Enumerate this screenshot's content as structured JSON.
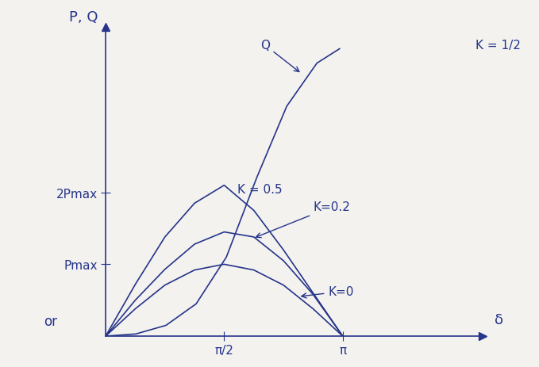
{
  "chart_data": {
    "type": "line",
    "x_label": "δ",
    "y_label": "P, Q",
    "annotations": [
      "K = 1/2",
      "or"
    ],
    "xlim": [
      0,
      5
    ],
    "ylim": [
      0,
      4.3
    ],
    "xticks": [
      {
        "value": 1.5708,
        "label": "π/2"
      },
      {
        "value": 3.1416,
        "label": "π"
      }
    ],
    "yticks": [
      {
        "value": 1,
        "label": "Pmax"
      },
      {
        "value": 2,
        "label": "2Pmax"
      }
    ],
    "grid": false,
    "series": [
      {
        "name": "K=0",
        "color": "#26348a",
        "x": [
          0,
          0.3927,
          0.7854,
          1.1781,
          1.5708,
          1.9635,
          2.3562,
          2.7489,
          3.1416
        ],
        "values": [
          0,
          0.38,
          0.71,
          0.92,
          1.0,
          0.92,
          0.71,
          0.38,
          0
        ]
      },
      {
        "name": "K=0.2",
        "color": "#26348a",
        "x": [
          0,
          0.3927,
          0.7854,
          1.1781,
          1.5708,
          1.9635,
          2.3562,
          2.7489,
          3.1416
        ],
        "values": [
          0,
          0.5,
          0.93,
          1.28,
          1.45,
          1.38,
          1.05,
          0.58,
          0
        ]
      },
      {
        "name": "K = 0.5",
        "color": "#26348a",
        "x": [
          0,
          0.3927,
          0.7854,
          1.1781,
          1.5708,
          1.9635,
          2.3562,
          2.7489,
          3.1416
        ],
        "values": [
          0,
          0.72,
          1.38,
          1.85,
          2.1,
          1.75,
          1.2,
          0.6,
          0
        ]
      },
      {
        "name": "Q",
        "color": "#26348a",
        "x": [
          0,
          0.4,
          0.8,
          1.2,
          1.6,
          2.0,
          2.4,
          2.8,
          3.1
        ],
        "values": [
          0,
          0.03,
          0.15,
          0.45,
          1.1,
          2.2,
          3.2,
          3.8,
          4.0
        ]
      }
    ]
  }
}
